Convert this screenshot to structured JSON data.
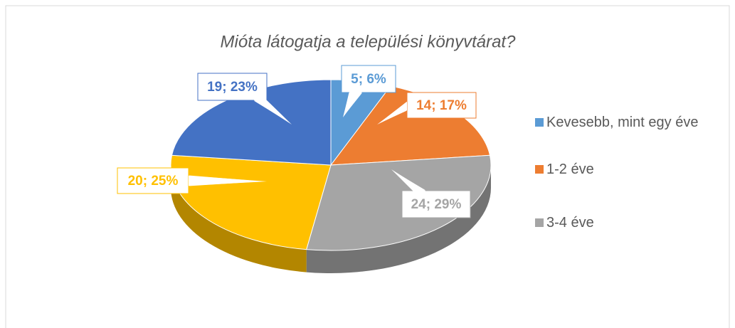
{
  "chart_data": {
    "type": "pie",
    "title": "Mióta látogatja a települési könyvtárat?",
    "categories": [
      "Kevesebb, mint egy éve",
      "1-2 éve",
      "3-4 éve",
      null,
      null
    ],
    "values": [
      5,
      14,
      24,
      20,
      19
    ],
    "value_labels": [
      "5; 6%",
      "14; 17%",
      "24; 29%",
      "20; 25%",
      "19; 23%"
    ],
    "colors": [
      "#5b9bd5",
      "#ed7d31",
      "#a5a5a5",
      "#ffc000",
      "#4472c4"
    ],
    "legend": "right"
  }
}
